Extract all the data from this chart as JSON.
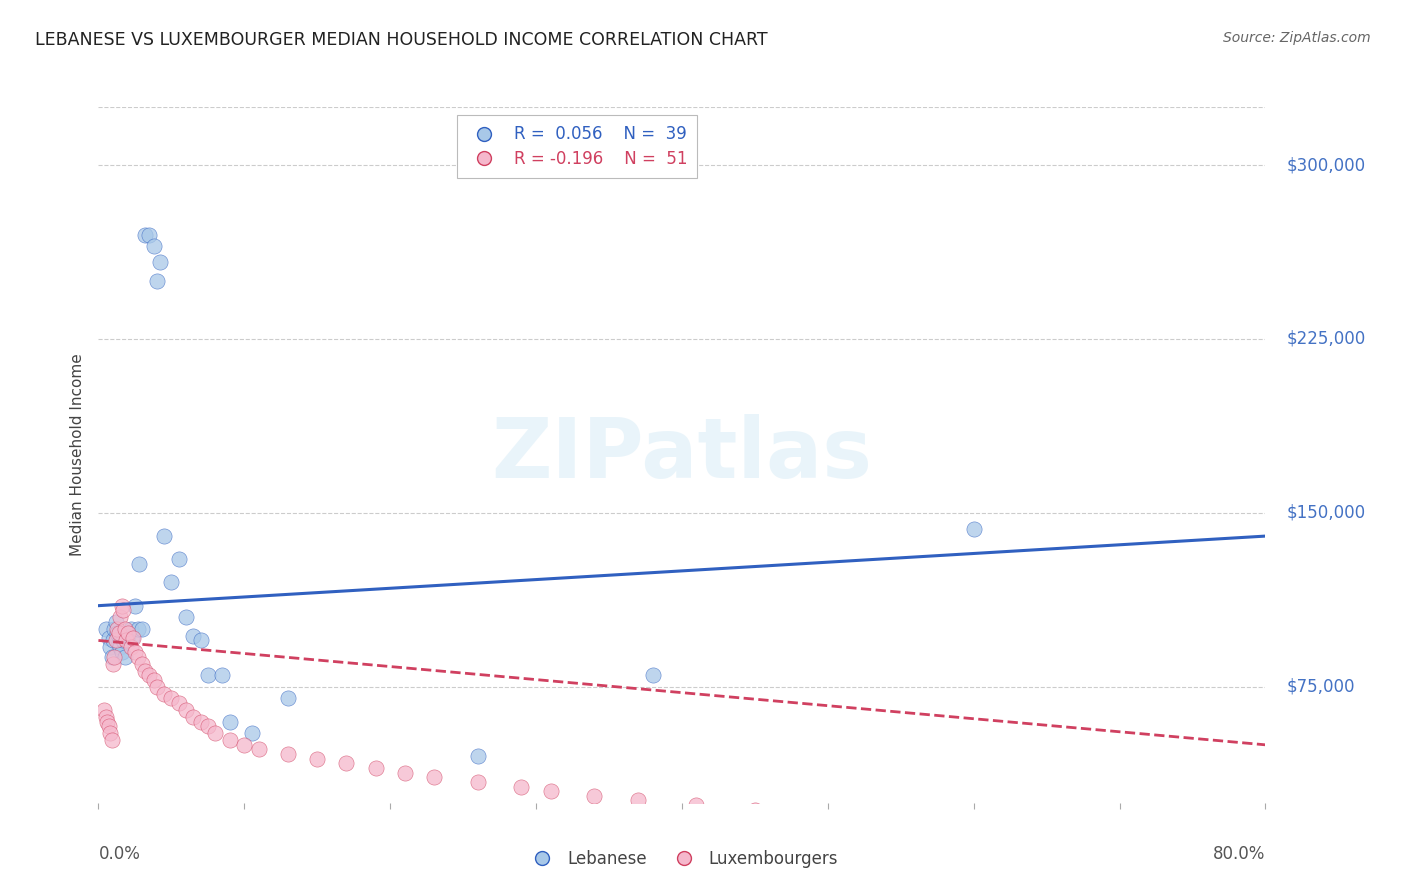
{
  "title": "LEBANESE VS LUXEMBOURGER MEDIAN HOUSEHOLD INCOME CORRELATION CHART",
  "source": "Source: ZipAtlas.com",
  "ylabel": "Median Household Income",
  "ytick_values": [
    75000,
    150000,
    225000,
    300000
  ],
  "ylim": [
    25000,
    325000
  ],
  "xlim": [
    0.0,
    0.8
  ],
  "watermark_text": "ZIPatlas",
  "legend_r1": "R = 0.056",
  "legend_n1": "N = 39",
  "legend_r2": "R = -0.196",
  "legend_n2": "N = 51",
  "lebanese_color": "#a8c8e8",
  "luxembourger_color": "#f5b8cc",
  "trendline_leb_color": "#3060c0",
  "trendline_lux_color": "#d04060",
  "lebanese_x": [
    0.005,
    0.007,
    0.008,
    0.009,
    0.01,
    0.011,
    0.012,
    0.013,
    0.014,
    0.015,
    0.016,
    0.017,
    0.018,
    0.02,
    0.022,
    0.023,
    0.025,
    0.027,
    0.028,
    0.03,
    0.032,
    0.035,
    0.038,
    0.04,
    0.042,
    0.045,
    0.05,
    0.055,
    0.06,
    0.065,
    0.07,
    0.075,
    0.085,
    0.09,
    0.105,
    0.13,
    0.26,
    0.38,
    0.6
  ],
  "lebanese_y": [
    100000,
    96000,
    92000,
    88000,
    95000,
    100000,
    103000,
    98000,
    94000,
    92000,
    90000,
    95000,
    88000,
    97000,
    100000,
    96000,
    110000,
    100000,
    128000,
    100000,
    270000,
    270000,
    265000,
    250000,
    258000,
    140000,
    120000,
    130000,
    105000,
    97000,
    95000,
    80000,
    80000,
    60000,
    55000,
    70000,
    45000,
    80000,
    143000
  ],
  "luxembourger_x": [
    0.004,
    0.005,
    0.006,
    0.007,
    0.008,
    0.009,
    0.01,
    0.011,
    0.012,
    0.013,
    0.014,
    0.015,
    0.016,
    0.017,
    0.018,
    0.019,
    0.02,
    0.022,
    0.024,
    0.025,
    0.027,
    0.03,
    0.032,
    0.035,
    0.038,
    0.04,
    0.045,
    0.05,
    0.055,
    0.06,
    0.065,
    0.07,
    0.075,
    0.08,
    0.09,
    0.1,
    0.11,
    0.13,
    0.15,
    0.17,
    0.19,
    0.21,
    0.23,
    0.26,
    0.29,
    0.31,
    0.34,
    0.37,
    0.41,
    0.45,
    0.49
  ],
  "luxembourger_y": [
    65000,
    62000,
    60000,
    58000,
    55000,
    52000,
    85000,
    88000,
    95000,
    100000,
    98000,
    105000,
    110000,
    108000,
    100000,
    95000,
    98000,
    92000,
    96000,
    90000,
    88000,
    85000,
    82000,
    80000,
    78000,
    75000,
    72000,
    70000,
    68000,
    65000,
    62000,
    60000,
    58000,
    55000,
    52000,
    50000,
    48000,
    46000,
    44000,
    42000,
    40000,
    38000,
    36000,
    34000,
    32000,
    30000,
    28000,
    26000,
    24000,
    22000,
    20000
  ]
}
